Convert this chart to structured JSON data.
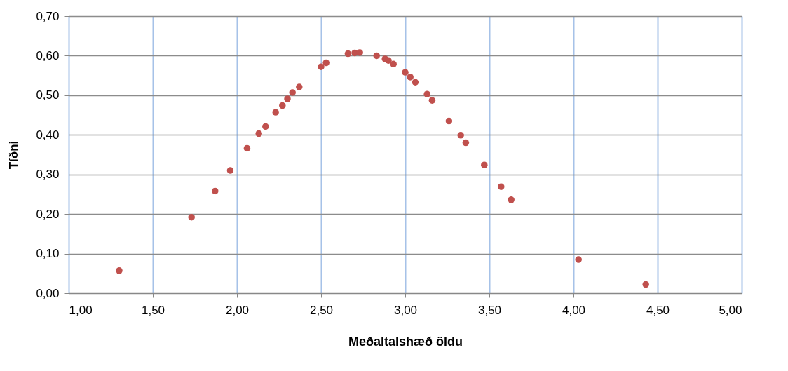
{
  "chart_data": {
    "type": "scatter",
    "xlabel": "Meðaltalshæð öldu",
    "ylabel": "Tíðni",
    "x": [
      1.3,
      1.73,
      1.87,
      1.96,
      2.06,
      2.13,
      2.17,
      2.23,
      2.27,
      2.3,
      2.33,
      2.37,
      2.5,
      2.53,
      2.66,
      2.7,
      2.73,
      2.83,
      2.88,
      2.9,
      2.93,
      3.0,
      3.03,
      3.06,
      3.13,
      3.16,
      3.26,
      3.33,
      3.36,
      3.47,
      3.57,
      3.63,
      4.03,
      4.43
    ],
    "series": [
      {
        "color": "#c0504d",
        "values": [
          0.057,
          0.192,
          0.258,
          0.31,
          0.366,
          0.403,
          0.421,
          0.457,
          0.474,
          0.491,
          0.507,
          0.521,
          0.572,
          0.582,
          0.605,
          0.607,
          0.608,
          0.6,
          0.592,
          0.588,
          0.579,
          0.558,
          0.546,
          0.533,
          0.503,
          0.487,
          0.435,
          0.399,
          0.38,
          0.324,
          0.269,
          0.236,
          0.085,
          0.022
        ]
      }
    ],
    "xlim": [
      1.0,
      5.0
    ],
    "ylim": [
      0.0,
      0.7
    ],
    "xticks": [
      {
        "value": 1.0,
        "label": "1,00"
      },
      {
        "value": 1.5,
        "label": "1,50"
      },
      {
        "value": 2.0,
        "label": "2,00"
      },
      {
        "value": 2.5,
        "label": "2,50"
      },
      {
        "value": 3.0,
        "label": "3,00"
      },
      {
        "value": 3.5,
        "label": "3,50"
      },
      {
        "value": 4.0,
        "label": "4,00"
      },
      {
        "value": 4.5,
        "label": "4,50"
      },
      {
        "value": 5.0,
        "label": "5,00"
      }
    ],
    "yticks": [
      {
        "value": 0.0,
        "label": "0,00"
      },
      {
        "value": 0.1,
        "label": "0,10"
      },
      {
        "value": 0.2,
        "label": "0,20"
      },
      {
        "value": 0.3,
        "label": "0,30"
      },
      {
        "value": 0.4,
        "label": "0,40"
      },
      {
        "value": 0.5,
        "label": "0,50"
      },
      {
        "value": 0.6,
        "label": "0,60"
      },
      {
        "value": 0.7,
        "label": "0,70"
      }
    ],
    "grid": true,
    "marker": "circle"
  }
}
